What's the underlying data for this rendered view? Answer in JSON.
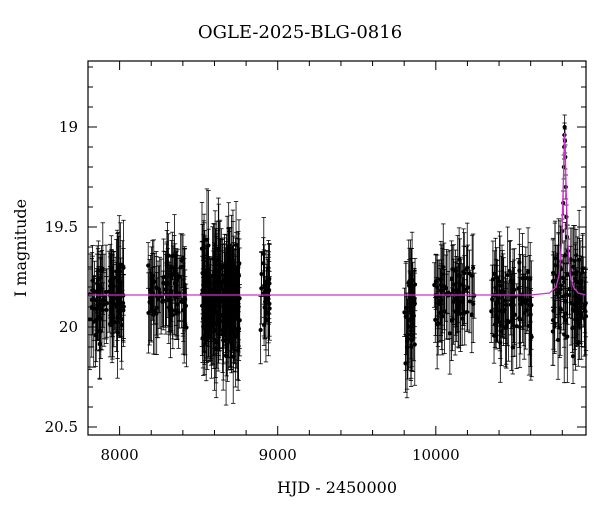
{
  "chart_data": {
    "type": "scatter",
    "title": "OGLE-2025-BLG-0816",
    "xlabel": "HJD - 2450000",
    "ylabel": "I magnitude",
    "xlim": [
      7800,
      10950
    ],
    "ylim": [
      20.54,
      18.67
    ],
    "y_inverted": true,
    "x_ticks": [
      8000,
      9000,
      10000
    ],
    "y_ticks": [
      19,
      19.5,
      20,
      20.5
    ],
    "grid": false,
    "legend": "none",
    "colors": {
      "points": "#000000",
      "model": "#cc33cc",
      "axes": "#000000"
    },
    "model": {
      "baseline_mag": 19.84,
      "peak_time": 10815,
      "peak_mag": 19.03,
      "curve": [
        [
          7800,
          19.84
        ],
        [
          10600,
          19.84
        ],
        [
          10720,
          19.83
        ],
        [
          10760,
          19.8
        ],
        [
          10780,
          19.74
        ],
        [
          10795,
          19.58
        ],
        [
          10805,
          19.32
        ],
        [
          10812,
          19.1
        ],
        [
          10815,
          19.03
        ],
        [
          10818,
          19.1
        ],
        [
          10825,
          19.32
        ],
        [
          10835,
          19.58
        ],
        [
          10850,
          19.74
        ],
        [
          10870,
          19.8
        ],
        [
          10900,
          19.83
        ],
        [
          10950,
          19.84
        ]
      ]
    },
    "seasons": [
      {
        "x_range": [
          7810,
          8030
        ],
        "mag_mean": 19.86,
        "scatter": 0.13,
        "error": 0.18,
        "n": 90
      },
      {
        "x_range": [
          8180,
          8430
        ],
        "mag_mean": 19.83,
        "scatter": 0.12,
        "error": 0.16,
        "n": 90
      },
      {
        "x_range": [
          8520,
          8760
        ],
        "mag_mean": 19.86,
        "scatter": 0.17,
        "error": 0.2,
        "n": 230
      },
      {
        "x_range": [
          8890,
          8950
        ],
        "mag_mean": 19.82,
        "scatter": 0.14,
        "error": 0.16,
        "n": 30
      },
      {
        "x_range": [
          9800,
          9870
        ],
        "mag_mean": 19.92,
        "scatter": 0.17,
        "error": 0.2,
        "n": 35
      },
      {
        "x_range": [
          9990,
          10250
        ],
        "mag_mean": 19.85,
        "scatter": 0.12,
        "error": 0.16,
        "n": 75
      },
      {
        "x_range": [
          10350,
          10610
        ],
        "mag_mean": 19.88,
        "scatter": 0.13,
        "error": 0.18,
        "n": 80
      },
      {
        "x_range": [
          10740,
          10950
        ],
        "mag_mean": 19.86,
        "scatter": 0.14,
        "error": 0.18,
        "n": 90
      }
    ],
    "event_points": [
      [
        10800,
        19.52
      ],
      [
        10806,
        19.38
      ],
      [
        10810,
        19.2
      ],
      [
        10812,
        19.1
      ],
      [
        10814,
        19.04
      ],
      [
        10815,
        19.0
      ],
      [
        10817,
        19.07
      ],
      [
        10819,
        19.15
      ],
      [
        10822,
        19.3
      ],
      [
        10826,
        19.45
      ],
      [
        10830,
        19.55
      ],
      [
        10836,
        19.62
      ]
    ]
  }
}
